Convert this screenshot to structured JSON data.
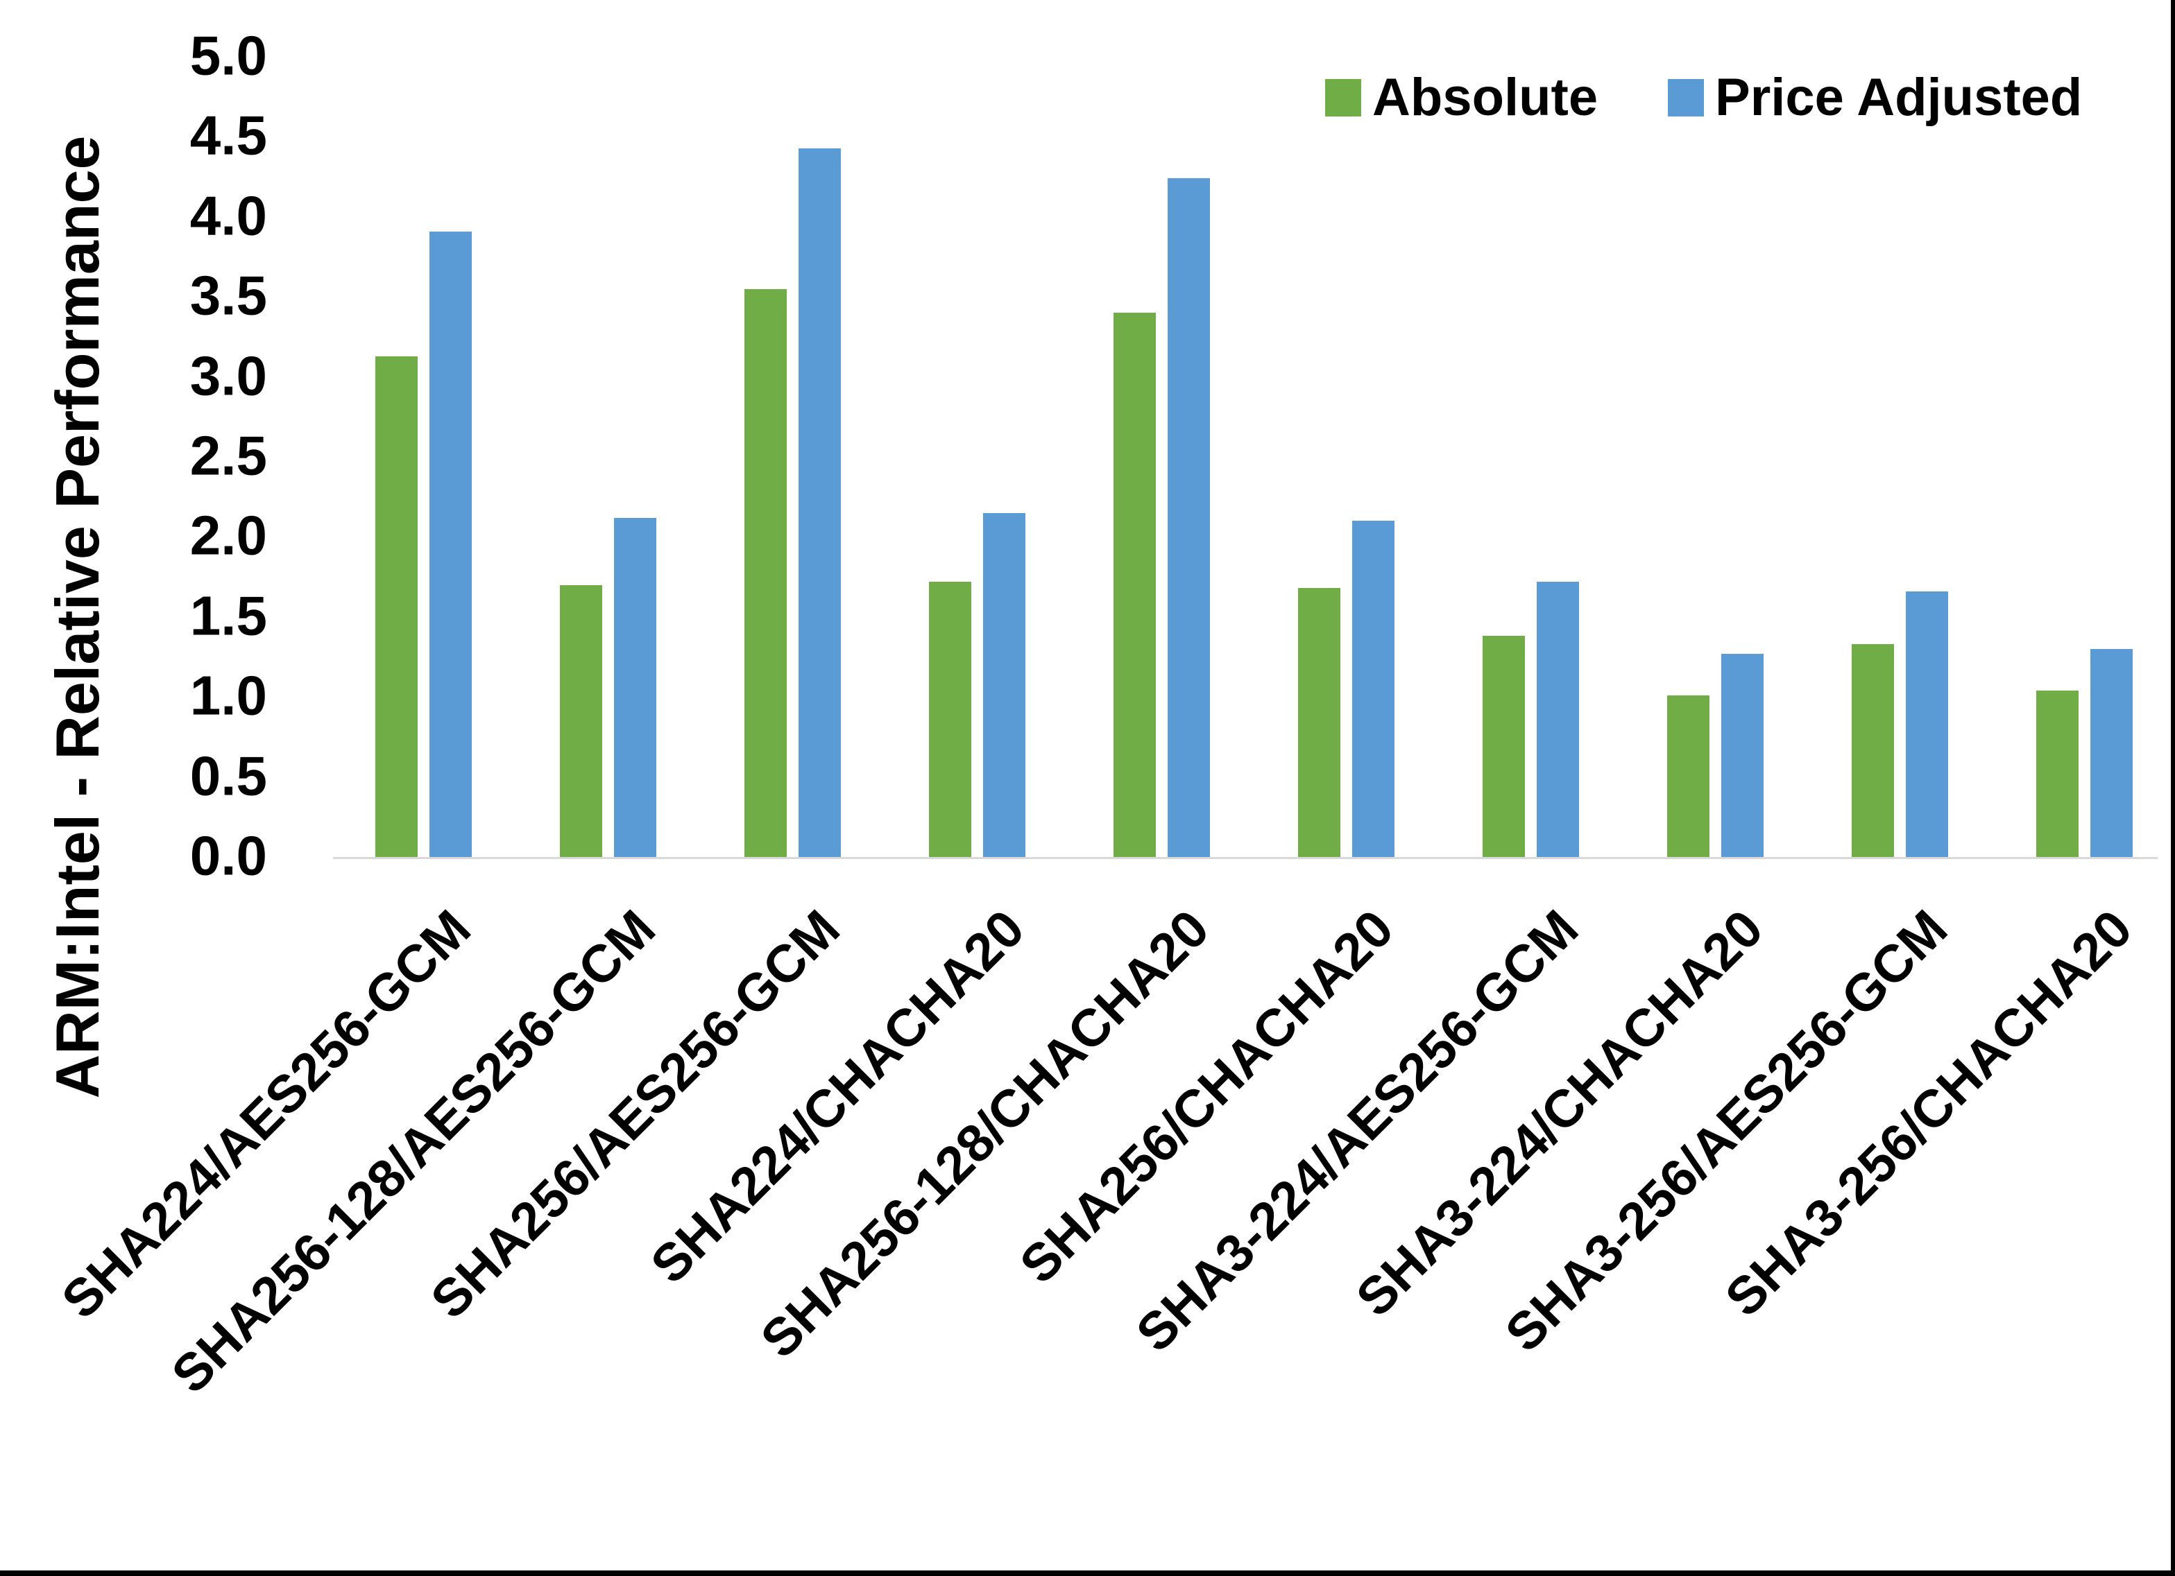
{
  "page": {
    "background": "#ffffff",
    "frame_color": "#000000"
  },
  "axis": {
    "baseline_color": "#d9d9d9",
    "text_color": "#000000"
  },
  "chart_data": {
    "type": "bar",
    "title": "",
    "xlabel": "",
    "ylabel": "ARM:Intel - Relative Performance",
    "ylim": [
      0.0,
      5.0
    ],
    "ytick_step": 0.5,
    "ytick_labels": [
      "0.0",
      "0.5",
      "1.0",
      "1.5",
      "2.0",
      "2.5",
      "3.0",
      "3.5",
      "4.0",
      "4.5",
      "5.0"
    ],
    "grid": false,
    "legend_position": "top-right",
    "categories": [
      "SHA224/AES256-GCM",
      "SHA256-128/AES256-GCM",
      "SHA256/AES256-GCM",
      "SHA224/CHACHA20",
      "SHA256-128/CHACHA20",
      "SHA256/CHACHA20",
      "SHA3-224/AES256-GCM",
      "SHA3-224/CHACHA20",
      "SHA3-256/AES256-GCM",
      "SHA3-256/CHACHA20"
    ],
    "series": [
      {
        "name": "Absolute",
        "color": "#70AD47",
        "values": [
          3.13,
          1.7,
          3.55,
          1.72,
          3.4,
          1.68,
          1.38,
          1.01,
          1.33,
          1.04
        ]
      },
      {
        "name": "Price Adjusted",
        "color": "#5B9BD5",
        "values": [
          3.91,
          2.12,
          4.43,
          2.15,
          4.24,
          2.1,
          1.72,
          1.27,
          1.66,
          1.3
        ]
      }
    ]
  }
}
